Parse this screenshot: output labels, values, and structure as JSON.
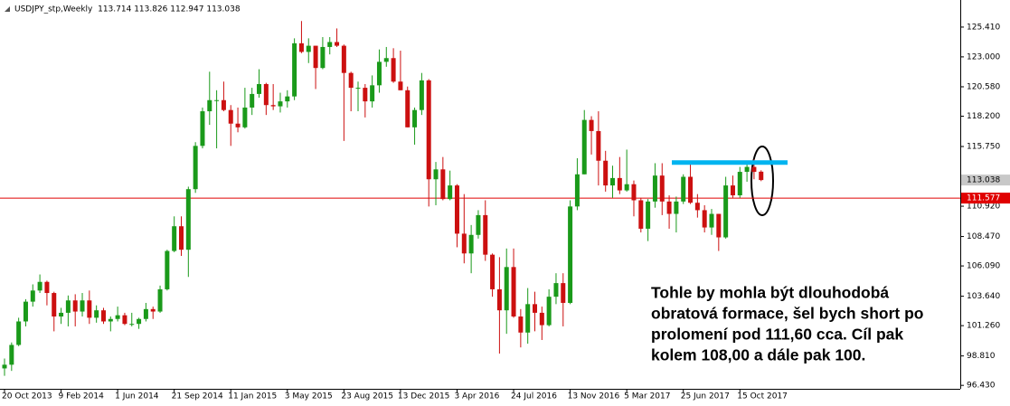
{
  "chart_data": {
    "type": "candlestick",
    "title": "USDJPY_stp,Weekly  113.714 113.826 112.947 113.038",
    "categories": [
      "20 Oct 2013",
      null,
      null,
      null,
      null,
      null,
      null,
      null,
      "9 Feb 2014",
      null,
      null,
      null,
      null,
      null,
      null,
      null,
      "1 Jun 2014",
      null,
      null,
      null,
      null,
      null,
      null,
      null,
      "21 Sep 2014",
      null,
      null,
      null,
      null,
      null,
      null,
      null,
      "11 Jan 2015",
      null,
      null,
      null,
      null,
      null,
      null,
      null,
      "3 May 2015",
      null,
      null,
      null,
      null,
      null,
      null,
      null,
      "23 Aug 2015",
      null,
      null,
      null,
      null,
      null,
      null,
      null,
      "13 Dec 2015",
      null,
      null,
      null,
      null,
      null,
      null,
      null,
      "3 Apr 2016",
      null,
      null,
      null,
      null,
      null,
      null,
      null,
      "24 Jul 2016",
      null,
      null,
      null,
      null,
      null,
      null,
      null,
      "13 Nov 2016",
      null,
      null,
      null,
      null,
      null,
      null,
      null,
      "5 Mar 2017",
      null,
      null,
      null,
      null,
      null,
      null,
      null,
      "25 Jun 2017",
      null,
      null,
      null,
      null,
      null,
      null,
      null,
      "15 Oct 2017",
      null,
      null,
      null
    ],
    "open": [
      97.8,
      98.1,
      99.7,
      101.6,
      103.2,
      104.1,
      104.8,
      103.9,
      102.0,
      102.3,
      103.3,
      102.4,
      103.3,
      101.9,
      102.5,
      101.6,
      101.8,
      102.1,
      101.4,
      101.4,
      101.8,
      102.6,
      102.4,
      104.2,
      107.3,
      109.3,
      107.4,
      112.3,
      115.8,
      118.6,
      119.5,
      119.5,
      118.7,
      117.6,
      117.3,
      118.9,
      120.0,
      120.8,
      119.1,
      119.0,
      119.4,
      119.8,
      124.1,
      123.4,
      123.9,
      122.1,
      123.8,
      124.2,
      123.9,
      121.7,
      120.5,
      120.5,
      119.4,
      120.7,
      122.6,
      122.9,
      121.0,
      120.3,
      117.3,
      118.7,
      121.1,
      113.1,
      113.9,
      111.5,
      112.6,
      108.7,
      107.1,
      108.6,
      110.2,
      107.0,
      104.2,
      102.5,
      106.0,
      102.0,
      100.7,
      103.0,
      102.3,
      101.3,
      103.6,
      104.7,
      103.1,
      110.9,
      113.5,
      117.9,
      117.0,
      114.6,
      112.6,
      113.2,
      112.2,
      112.7,
      111.4,
      109.1,
      111.3,
      113.4,
      111.3,
      110.3,
      111.3,
      113.3,
      111.2,
      110.6,
      109.2,
      110.3,
      108.4,
      112.6,
      111.8,
      113.7,
      114.1,
      113.714
    ],
    "high": [
      98.6,
      99.9,
      101.9,
      103.4,
      104.6,
      105.4,
      104.9,
      104.0,
      102.7,
      103.7,
      103.8,
      103.9,
      104.1,
      102.9,
      102.7,
      102.0,
      102.8,
      102.3,
      102.3,
      101.9,
      103.1,
      102.8,
      104.5,
      107.4,
      110.1,
      110.1,
      112.5,
      116.1,
      118.9,
      121.8,
      120.3,
      121.0,
      119.1,
      118.9,
      120.5,
      120.5,
      122.0,
      120.9,
      120.8,
      120.1,
      120.3,
      124.5,
      125.9,
      124.5,
      123.9,
      124.6,
      124.6,
      125.3,
      124.0,
      121.8,
      121.0,
      120.8,
      121.5,
      123.6,
      123.8,
      123.7,
      123.5,
      120.6,
      118.9,
      121.7,
      121.2,
      114.5,
      114.9,
      113.8,
      112.7,
      111.9,
      109.4,
      110.6,
      111.4,
      107.1,
      106.8,
      107.5,
      107.5,
      102.6,
      104.3,
      104.0,
      102.8,
      104.2,
      105.5,
      105.5,
      111.4,
      114.8,
      118.7,
      118.2,
      118.6,
      115.4,
      114.2,
      114.9,
      115.5,
      113.0,
      111.6,
      111.5,
      114.4,
      114.4,
      111.8,
      111.7,
      113.5,
      114.5,
      111.9,
      111.0,
      110.7,
      110.3,
      113.3,
      113.4,
      114.1,
      114.3,
      114.7,
      113.826
    ],
    "low": [
      97.2,
      97.6,
      99.6,
      101.2,
      102.8,
      103.9,
      102.9,
      100.8,
      101.4,
      101.2,
      101.2,
      102.0,
      101.4,
      101.5,
      101.4,
      100.8,
      101.6,
      101.3,
      101.2,
      101.0,
      101.6,
      101.8,
      102.3,
      104.1,
      107.2,
      106.9,
      105.2,
      112.0,
      115.6,
      117.5,
      115.6,
      118.6,
      115.8,
      116.9,
      117.2,
      118.3,
      119.7,
      118.3,
      118.7,
      118.5,
      118.9,
      119.5,
      123.3,
      122.5,
      120.4,
      122.0,
      123.2,
      123.8,
      116.2,
      118.6,
      118.6,
      118.1,
      118.9,
      120.1,
      122.2,
      120.9,
      120.3,
      117.3,
      115.9,
      118.3,
      110.9,
      111.0,
      111.4,
      111.4,
      107.6,
      106.3,
      105.5,
      108.3,
      106.5,
      103.6,
      99.0,
      100.6,
      101.9,
      99.5,
      99.8,
      100.8,
      100.1,
      101.2,
      103.0,
      101.2,
      103.0,
      110.6,
      113.5,
      115.1,
      112.6,
      112.1,
      111.6,
      111.9,
      112.1,
      110.1,
      108.8,
      108.1,
      110.8,
      110.2,
      109.1,
      108.8,
      111.1,
      111.1,
      110.0,
      108.8,
      108.6,
      107.3,
      108.3,
      111.6,
      111.6,
      112.9,
      113.1,
      112.947
    ],
    "close": [
      98.1,
      99.7,
      101.6,
      103.2,
      104.1,
      104.8,
      103.9,
      102.0,
      102.3,
      103.3,
      102.4,
      103.3,
      101.9,
      102.5,
      101.6,
      101.8,
      102.1,
      101.4,
      101.4,
      101.8,
      102.6,
      102.4,
      104.2,
      107.3,
      109.3,
      107.4,
      112.3,
      115.8,
      118.6,
      119.5,
      119.5,
      118.7,
      117.6,
      117.3,
      118.9,
      120.0,
      120.8,
      119.1,
      119.0,
      119.4,
      119.8,
      124.1,
      123.4,
      123.9,
      122.1,
      123.8,
      124.2,
      123.9,
      121.7,
      120.5,
      120.5,
      119.4,
      120.7,
      122.6,
      122.9,
      121.0,
      120.3,
      117.3,
      118.7,
      121.1,
      113.1,
      113.9,
      111.5,
      112.6,
      108.7,
      107.1,
      108.6,
      110.2,
      107.0,
      104.2,
      102.5,
      106.0,
      102.0,
      100.7,
      103.0,
      102.3,
      101.3,
      103.6,
      104.7,
      103.1,
      110.9,
      113.5,
      117.9,
      117.0,
      114.6,
      112.6,
      113.2,
      112.2,
      112.7,
      111.4,
      109.1,
      111.3,
      113.4,
      111.3,
      110.3,
      111.3,
      113.3,
      111.2,
      110.6,
      109.2,
      110.3,
      108.4,
      112.6,
      111.8,
      113.7,
      114.1,
      113.7,
      113.038
    ],
    "up_color": "#1a9a1a",
    "down_color": "#cc1010",
    "ylim": [
      96.15,
      127.6
    ],
    "yticks": [
      {
        "value": 96.43,
        "label": "96.430"
      },
      {
        "value": 98.81,
        "label": "98.810"
      },
      {
        "value": 101.26,
        "label": "101.260"
      },
      {
        "value": 103.64,
        "label": "103.640"
      },
      {
        "value": 106.09,
        "label": "106.090"
      },
      {
        "value": 108.47,
        "label": "108.470"
      },
      {
        "value": 110.92,
        "label": "110.920"
      },
      {
        "value": 115.75,
        "label": "115.750"
      },
      {
        "value": 118.2,
        "label": "118.200"
      },
      {
        "value": 120.58,
        "label": "120.580"
      },
      {
        "value": 123.0,
        "label": "123.000"
      },
      {
        "value": 125.41,
        "label": "125.410"
      }
    ],
    "level_line": {
      "value": 111.577,
      "color": "#e00000"
    },
    "last_price": 113.038,
    "resistance": {
      "value": 114.45,
      "color": "#00b4f0"
    },
    "annotation": [
      "Tohle by mohla být dlouhodobá",
      "obratová formace, šel bych short po",
      "prolomení pod 111,60 cca. Cíl pak",
      "kolem 108,00 a dále pak 100."
    ]
  }
}
